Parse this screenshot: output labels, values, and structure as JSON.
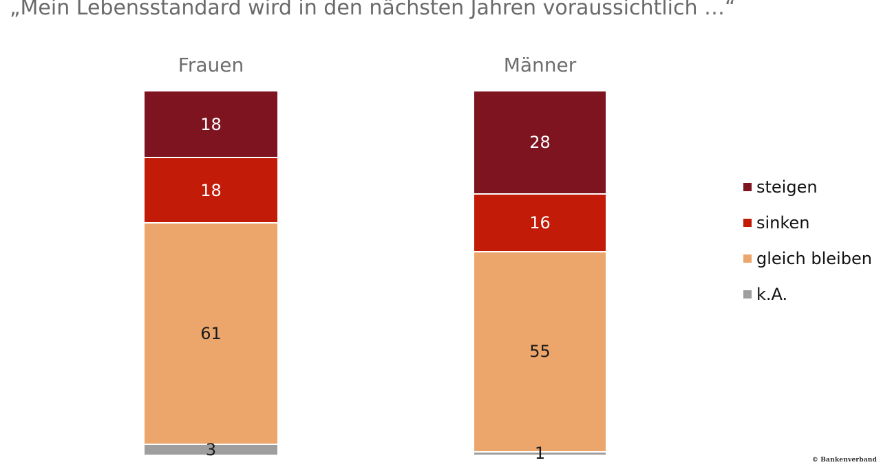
{
  "title": "„Mein Lebensstandard wird in den nächsten Jahren voraussichtlich …“",
  "footer": {
    "source_label": "© Bankenverband"
  },
  "colors": {
    "title_gray": "#6a6a6a",
    "category_label_gray": "#6d6d6d",
    "steigen_dark_red": "#7d1420",
    "sinken_red": "#c21b08",
    "gleich_bleiben_orange": "#eca66c",
    "ka_gray": "#9e9e9e",
    "separator_white": "#ffffff"
  },
  "chart_data": {
    "type": "bar",
    "variant": "stacked-vertical-column",
    "title": "„Mein Lebensstandard wird in den nächsten Jahren voraussichtlich …“",
    "categories": [
      "Frauen",
      "Männer"
    ],
    "series": [
      {
        "name": "steigen",
        "color": "#7d1420",
        "label_color": "#ffffff",
        "values": [
          18,
          28
        ]
      },
      {
        "name": "sinken",
        "color": "#c21b08",
        "label_color": "#ffffff",
        "values": [
          18,
          16
        ]
      },
      {
        "name": "gleich bleiben",
        "color": "#eca66c",
        "label_color": "#1a1a1a",
        "values": [
          61,
          55
        ]
      },
      {
        "name": "k.A.",
        "color": "#9e9e9e",
        "label_color": "#1a1a1a",
        "values": [
          3,
          1
        ]
      }
    ],
    "value_unit": "percent",
    "total_per_bar": 100,
    "ylim": [
      0,
      100
    ],
    "grid": false,
    "axis_labels": false,
    "legend_position": "right",
    "data_labels": "inside-center"
  }
}
